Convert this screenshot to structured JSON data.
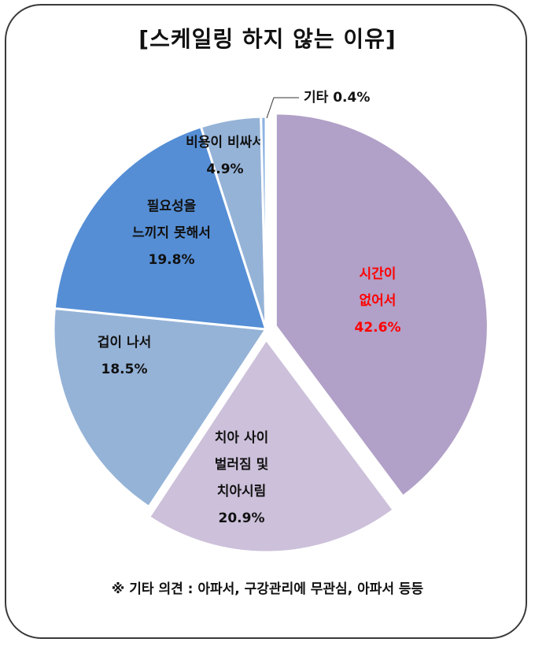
{
  "chart_data": {
    "type": "pie",
    "title": "[스케일링 하지 않는 이유]",
    "slices": [
      {
        "lines": [
          "시간이",
          "없어서"
        ],
        "percent_label": "42.6%",
        "value": 42.6,
        "color": "#b1a0c7",
        "label_color": "#ff0000"
      },
      {
        "lines": [
          "치아 사이",
          "벌러짐 및",
          "치아시림"
        ],
        "percent_label": "20.9%",
        "value": 20.9,
        "color": "#ccc0da",
        "label_color": "#111111"
      },
      {
        "lines": [
          "겁이 나서"
        ],
        "percent_label": "18.5%",
        "value": 18.5,
        "color": "#95b3d7",
        "label_color": "#111111"
      },
      {
        "lines": [
          "필요성을",
          "느끼지 못해서"
        ],
        "percent_label": "19.8%",
        "value": 19.8,
        "color": "#558ed5",
        "label_color": "#111111"
      },
      {
        "lines": [
          "비용이 비싸서"
        ],
        "percent_label": "4.9%",
        "value": 4.9,
        "color": "#95b3d7",
        "label_color": "#111111"
      },
      {
        "lines": [
          "기타"
        ],
        "percent_label": "0.4%",
        "value": 0.4,
        "color": "#8db4e2",
        "label_color": "#111111"
      }
    ],
    "start_angle_deg": 0,
    "direction": "clockwise",
    "exploded_slices": [
      "시간이 없어서",
      "치아 사이 벌러짐 및 치아시림"
    ],
    "legend": "none"
  },
  "footnote": "※ 기타 의견 :  아파서, 구강관리에 무관심, 아파서 등등"
}
